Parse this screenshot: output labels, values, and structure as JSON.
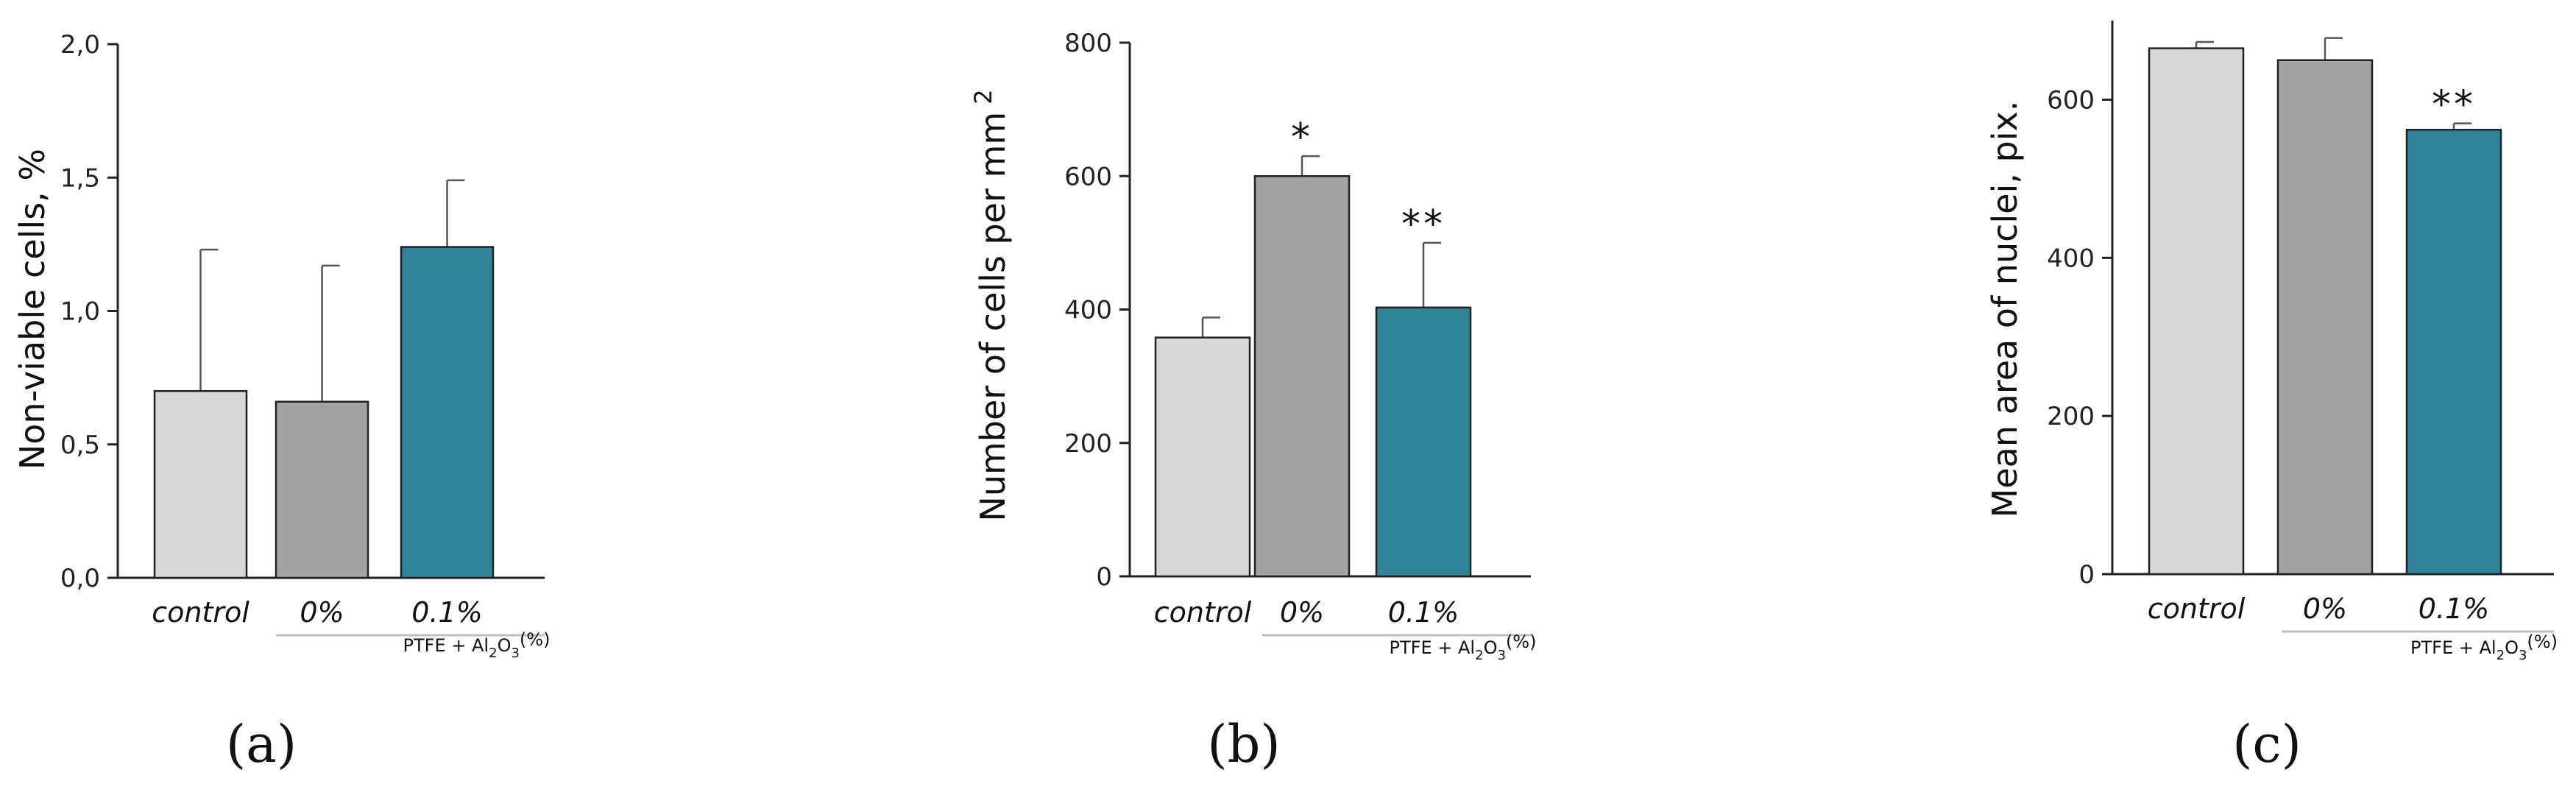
{
  "colors": {
    "control": "#d8d8d8",
    "zero": "#a3a3a3",
    "point_one": "#2e8399",
    "axis": "#222222",
    "bracket": "#bcbcbc"
  },
  "chart_data": [
    {
      "type": "bar",
      "panel_label": "(a)",
      "ylabel": "Non-viable cells, %",
      "ylim": [
        0,
        2.0
      ],
      "yticks": [
        "0,0",
        "0,5",
        "1,0",
        "1,5",
        "2,0"
      ],
      "categories": [
        "control",
        "0%",
        "0.1%"
      ],
      "values": [
        0.7,
        0.66,
        1.24
      ],
      "errors": [
        0.53,
        0.51,
        0.25
      ],
      "significance": [
        "",
        "",
        ""
      ],
      "group_label": {
        "prefix": "PTFE + Al",
        "sub1": "2",
        "mid": "O",
        "sub2": "3",
        "suffix": "(%)"
      }
    },
    {
      "type": "bar",
      "panel_label": "(b)",
      "ylabel": "Number of cells per mm",
      "ylabel_sup": "2",
      "ylim": [
        0,
        800
      ],
      "yticks": [
        "0",
        "200",
        "400",
        "600",
        "800"
      ],
      "categories": [
        "control",
        "0%",
        "0.1%"
      ],
      "values": [
        358,
        600,
        403
      ],
      "errors": [
        30,
        30,
        97
      ],
      "significance": [
        "",
        "*",
        "**"
      ],
      "group_label": {
        "prefix": "PTFE + Al",
        "sub1": "2",
        "mid": "O",
        "sub2": "3",
        "suffix": "(%)"
      }
    },
    {
      "type": "bar",
      "panel_label": "(c)",
      "ylabel": "Mean area of nuclei, pix.",
      "ylim": [
        0,
        700
      ],
      "yticks": [
        "0",
        "200",
        "400",
        "600"
      ],
      "categories": [
        "control",
        "0%",
        "0.1%"
      ],
      "values": [
        665,
        650,
        562
      ],
      "errors": [
        8,
        28,
        8
      ],
      "significance": [
        "",
        "",
        "**"
      ],
      "group_label": {
        "prefix": "PTFE + Al",
        "sub1": "2",
        "mid": "O",
        "sub2": "3",
        "suffix": "(%)"
      }
    }
  ]
}
